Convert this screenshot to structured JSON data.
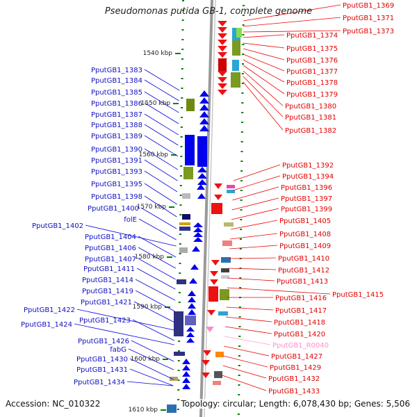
{
  "title": "Pseudomonas putida GB-1, complete genome",
  "footer": {
    "accession": "Accession: NC_010322",
    "summary": "Topology: circular; Length: 6,078,430 bp; Genes: 5,506"
  },
  "colors": {
    "left_label": "#1010c0",
    "right_label": "#e00000",
    "rna_label": "#ff8fc8",
    "backbone": "#999999",
    "tick": "#008000"
  },
  "scale": [
    {
      "label": "1540 kbp"
    },
    {
      "label": "1550 kbp"
    },
    {
      "label": "1560 kbp"
    },
    {
      "label": "1570 kbp"
    },
    {
      "label": "1580 kbp"
    },
    {
      "label": "1590 kbp"
    },
    {
      "label": "1600 kbp"
    },
    {
      "label": "1610 kbp"
    }
  ],
  "left_genes": [
    "PputGB1_1383",
    "PputGB1_1384",
    "PputGB1_1385",
    "PputGB1_1386",
    "PputGB1_1387",
    "PputGB1_1388",
    "PputGB1_1389",
    "PputGB1_1390",
    "PputGB1_1391",
    "PputGB1_1393",
    "PputGB1_1395",
    "PputGB1_1398",
    "PputGB1_1400",
    "folE",
    "PputGB1_1402",
    "PputGB1_1404",
    "PputGB1_1406",
    "PputGB1_1407",
    "PputGB1_1411",
    "PputGB1_1414",
    "PputGB1_1419",
    "PputGB1_1421",
    "PputGB1_1422",
    "PputGB1_1423",
    "PputGB1_1424",
    "PputGB1_1426",
    "fabG",
    "PputGB1_1430",
    "PputGB1_1431",
    "PputGB1_1434"
  ],
  "right_genes": [
    "PputGB1_1369",
    "PputGB1_1371",
    "PputGB1_1373",
    "PputGB1_1374",
    "PputGB1_1375",
    "PputGB1_1376",
    "PputGB1_1377",
    "PputGB1_1378",
    "PputGB1_1379",
    "PputGB1_1380",
    "PputGB1_1381",
    "PputGB1_1382",
    "PputGB1_1392",
    "PputGB1_1394",
    "PputGB1_1396",
    "PputGB1_1397",
    "PputGB1_1399",
    "PputGB1_1405",
    "PputGB1_1408",
    "PputGB1_1409",
    "PputGB1_1410",
    "PputGB1_1412",
    "PputGB1_1413",
    "PputGB1_1415",
    "PputGB1_1416",
    "PputGB1_1417",
    "PputGB1_1418",
    "PputGB1_1420",
    "PputGB1_R0040",
    "PputGB1_1427",
    "PputGB1_1429",
    "PputGB1_1432",
    "PputGB1_1433"
  ]
}
